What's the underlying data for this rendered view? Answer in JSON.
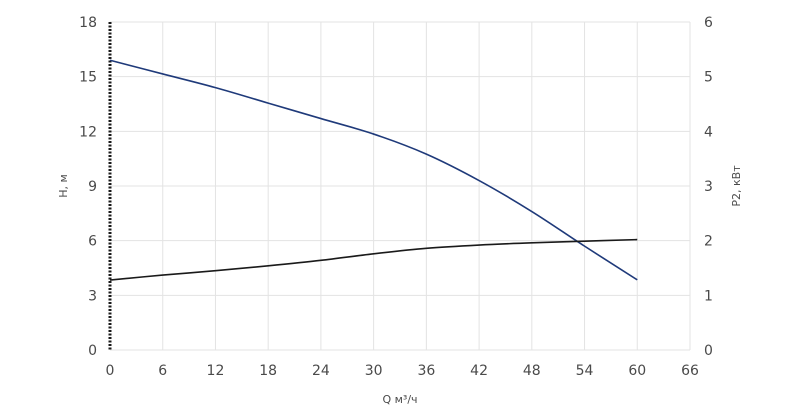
{
  "chart_data": {
    "type": "line",
    "xlabel": "Q м³/ч",
    "ylabel_left": "H, м",
    "ylabel_right": "P2, кВт",
    "x_ticks": [
      0,
      6,
      12,
      18,
      24,
      30,
      36,
      42,
      48,
      54,
      60,
      66
    ],
    "y_left_ticks": [
      0,
      3,
      6,
      9,
      12,
      15,
      18
    ],
    "y_right_ticks": [
      0,
      1,
      2,
      3,
      4,
      5,
      6
    ],
    "xlim": [
      0,
      66
    ],
    "ylim_left": [
      0,
      18
    ],
    "ylim_right": [
      0,
      6
    ],
    "grid": true,
    "series": [
      {
        "axis": "left",
        "color": "#1f3a7a",
        "points": [
          [
            0,
            15.9
          ],
          [
            6,
            15.15
          ],
          [
            12,
            14.4
          ],
          [
            18,
            13.55
          ],
          [
            24,
            12.7
          ],
          [
            30,
            11.85
          ],
          [
            36,
            10.75
          ],
          [
            42,
            9.3
          ],
          [
            48,
            7.6
          ],
          [
            54,
            5.7
          ],
          [
            60,
            3.85
          ]
        ]
      },
      {
        "axis": "right",
        "color": "#1a1a1a",
        "points": [
          [
            0,
            1.28
          ],
          [
            6,
            1.37
          ],
          [
            12,
            1.45
          ],
          [
            18,
            1.54
          ],
          [
            24,
            1.64
          ],
          [
            30,
            1.76
          ],
          [
            36,
            1.86
          ],
          [
            42,
            1.92
          ],
          [
            48,
            1.96
          ],
          [
            54,
            1.99
          ],
          [
            60,
            2.02
          ]
        ]
      }
    ]
  }
}
